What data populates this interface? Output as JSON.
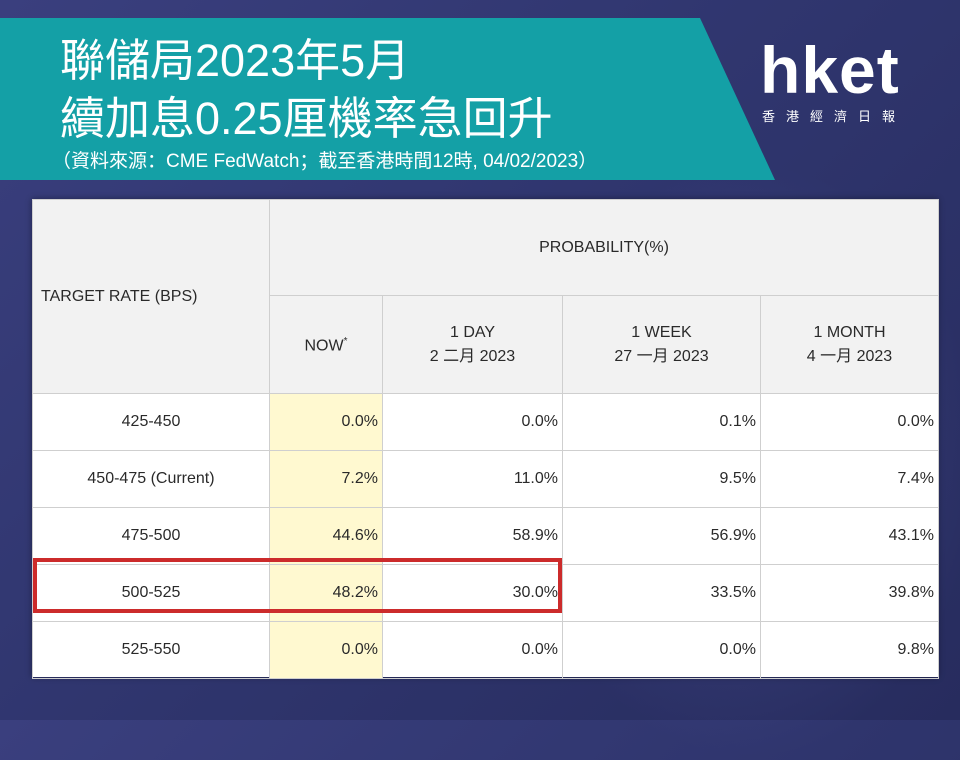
{
  "title": {
    "line1": "聯儲局2023年5月",
    "line2": "續加息0.25厘機率急回升",
    "source": "（資料來源：CME FedWatch；截至香港時間12時, 04/02/2023）"
  },
  "logo": {
    "word": "hket",
    "sub": "香港經濟日報"
  },
  "table": {
    "target_header": "TARGET RATE (BPS)",
    "probability_header": "PROBABILITY(%)",
    "columns": [
      {
        "line1": "NOW",
        "mark": "*",
        "line2": ""
      },
      {
        "line1": "1 DAY",
        "line2": "2 二月 2023"
      },
      {
        "line1": "1 WEEK",
        "line2": "27 一月 2023"
      },
      {
        "line1": "1 MONTH",
        "line2": "4 一月 2023"
      }
    ],
    "rows": [
      {
        "rate": "425-450",
        "values": [
          "0.0%",
          "0.0%",
          "0.1%",
          "0.0%"
        ]
      },
      {
        "rate": "450-475 (Current)",
        "values": [
          "7.2%",
          "11.0%",
          "9.5%",
          "7.4%"
        ]
      },
      {
        "rate": "475-500",
        "values": [
          "44.6%",
          "58.9%",
          "56.9%",
          "43.1%"
        ]
      },
      {
        "rate": "500-525",
        "values": [
          "48.2%",
          "30.0%",
          "33.5%",
          "39.8%"
        ]
      },
      {
        "rate": "525-550",
        "values": [
          "0.0%",
          "0.0%",
          "0.0%",
          "9.8%"
        ]
      }
    ]
  },
  "colors": {
    "banner": "#14a0a6",
    "highlight": "#cc2b2b",
    "now_column": "#fff9d0"
  }
}
